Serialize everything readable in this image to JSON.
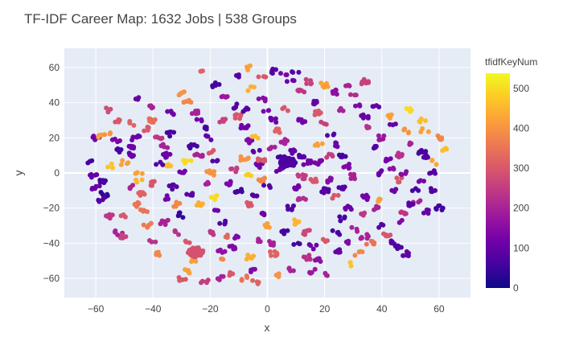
{
  "chart_data": {
    "type": "scatter",
    "title": "TF-IDF Career Map: 1632 Jobs | 538 Groups",
    "xlabel": "x",
    "ylabel": "y",
    "xlim": [
      -71,
      71
    ],
    "ylim": [
      -71,
      71
    ],
    "xticks": [
      -60,
      -40,
      -20,
      0,
      20,
      40,
      60
    ],
    "yticks": [
      -60,
      -40,
      -20,
      0,
      20,
      40,
      60
    ],
    "grid": true,
    "colorbar": {
      "title": "tfidfKeyNum",
      "range": [
        0,
        538
      ],
      "ticks": [
        0,
        100,
        200,
        300,
        400,
        500
      ],
      "colorscale": [
        "#0d0887",
        "#46039f",
        "#7201a8",
        "#9c179e",
        "#bd3786",
        "#d8576b",
        "#ed7953",
        "#fb9f3a",
        "#fdca26",
        "#f0f921"
      ]
    },
    "points": [
      [
        -60,
        20,
        120
      ],
      [
        -58,
        21,
        420
      ],
      [
        -56,
        22,
        400
      ],
      [
        -53,
        18,
        130
      ],
      [
        -52,
        13,
        60
      ],
      [
        -55,
        4,
        470
      ],
      [
        -58,
        -5,
        60
      ],
      [
        -60,
        -8,
        110
      ],
      [
        -58,
        -15,
        80
      ],
      [
        -55,
        -25,
        240
      ],
      [
        -52,
        -34,
        200
      ],
      [
        -50,
        -36,
        260
      ],
      [
        -55,
        36,
        280
      ],
      [
        -52,
        30,
        300
      ],
      [
        -48,
        15,
        110
      ],
      [
        -48,
        10,
        100
      ],
      [
        -45,
        0,
        420
      ],
      [
        -45,
        -4,
        450
      ],
      [
        -44,
        -12,
        320
      ],
      [
        -43,
        -22,
        350
      ],
      [
        -42,
        -30,
        360
      ],
      [
        -40,
        -38,
        230
      ],
      [
        -38,
        -46,
        380
      ],
      [
        -40,
        30,
        340
      ],
      [
        -42,
        25,
        300
      ],
      [
        -38,
        20,
        240
      ],
      [
        -36,
        15,
        200
      ],
      [
        -35,
        10,
        110
      ],
      [
        -34,
        4,
        460
      ],
      [
        -33,
        -8,
        80
      ],
      [
        -36,
        -14,
        120
      ],
      [
        -32,
        -18,
        380
      ],
      [
        -30,
        -24,
        40
      ],
      [
        -31,
        -34,
        230
      ],
      [
        -28,
        -40,
        300
      ],
      [
        -26,
        -50,
        420
      ],
      [
        -30,
        45,
        400
      ],
      [
        -28,
        40,
        380
      ],
      [
        -25,
        35,
        200
      ],
      [
        -24,
        30,
        120
      ],
      [
        -22,
        25,
        60
      ],
      [
        -21,
        20,
        100
      ],
      [
        -20,
        12,
        300
      ],
      [
        -18,
        8,
        80
      ],
      [
        -20,
        0,
        400
      ],
      [
        -22,
        -6,
        200
      ],
      [
        -19,
        -14,
        500
      ],
      [
        -18,
        -22,
        110
      ],
      [
        -16,
        -28,
        80
      ],
      [
        -14,
        -36,
        330
      ],
      [
        -12,
        -42,
        140
      ],
      [
        -15,
        -50,
        380
      ],
      [
        -12,
        -58,
        300
      ],
      [
        -22,
        58,
        320
      ],
      [
        -18,
        50,
        60
      ],
      [
        -15,
        44,
        180
      ],
      [
        -12,
        38,
        80
      ],
      [
        -10,
        32,
        300
      ],
      [
        -8,
        26,
        120
      ],
      [
        -6,
        18,
        140
      ],
      [
        -4,
        12,
        90
      ],
      [
        -3,
        4,
        120
      ],
      [
        -2,
        -4,
        380
      ],
      [
        -4,
        -12,
        80
      ],
      [
        -6,
        -18,
        300
      ],
      [
        -2,
        -24,
        110
      ],
      [
        0,
        -30,
        420
      ],
      [
        -3,
        -38,
        200
      ],
      [
        2,
        -46,
        320
      ],
      [
        -5,
        -55,
        140
      ],
      [
        -10,
        55,
        80
      ],
      [
        -6,
        48,
        440
      ],
      [
        -2,
        42,
        150
      ],
      [
        0,
        36,
        130
      ],
      [
        2,
        30,
        110
      ],
      [
        4,
        24,
        320
      ],
      [
        6,
        18,
        200
      ],
      [
        5,
        10,
        60
      ],
      [
        9,
        12,
        100
      ],
      [
        12,
        10,
        80
      ],
      [
        14,
        6,
        120
      ],
      [
        12,
        -2,
        250
      ],
      [
        10,
        -8,
        120
      ],
      [
        12,
        -14,
        220
      ],
      [
        8,
        -20,
        80
      ],
      [
        10,
        -28,
        450
      ],
      [
        14,
        -34,
        270
      ],
      [
        10,
        -40,
        60
      ],
      [
        14,
        -48,
        230
      ],
      [
        20,
        -58,
        200
      ],
      [
        16,
        -56,
        180
      ],
      [
        2,
        58,
        80
      ],
      [
        6,
        56,
        130
      ],
      [
        8,
        52,
        110
      ],
      [
        12,
        46,
        240
      ],
      [
        16,
        40,
        100
      ],
      [
        18,
        34,
        300
      ],
      [
        20,
        28,
        260
      ],
      [
        22,
        22,
        80
      ],
      [
        24,
        16,
        110
      ],
      [
        26,
        10,
        60
      ],
      [
        28,
        4,
        140
      ],
      [
        30,
        -2,
        200
      ],
      [
        26,
        -8,
        80
      ],
      [
        24,
        -14,
        300
      ],
      [
        28,
        -20,
        110
      ],
      [
        26,
        -26,
        60
      ],
      [
        30,
        -32,
        200
      ],
      [
        28,
        -40,
        140
      ],
      [
        32,
        -46,
        380
      ],
      [
        30,
        -52,
        470
      ],
      [
        36,
        -40,
        350
      ],
      [
        34,
        -36,
        200
      ],
      [
        40,
        -30,
        80
      ],
      [
        44,
        -40,
        80
      ],
      [
        46,
        -42,
        70
      ],
      [
        48,
        -46,
        100
      ],
      [
        42,
        -36,
        300
      ],
      [
        30,
        44,
        220
      ],
      [
        32,
        38,
        140
      ],
      [
        34,
        32,
        110
      ],
      [
        36,
        26,
        230
      ],
      [
        40,
        20,
        180
      ],
      [
        38,
        14,
        80
      ],
      [
        42,
        8,
        120
      ],
      [
        44,
        2,
        160
      ],
      [
        46,
        -4,
        300
      ],
      [
        44,
        -10,
        110
      ],
      [
        40,
        -16,
        420
      ],
      [
        48,
        -22,
        240
      ],
      [
        46,
        -28,
        140
      ],
      [
        44,
        28,
        100
      ],
      [
        48,
        24,
        400
      ],
      [
        50,
        16,
        200
      ],
      [
        54,
        30,
        460
      ],
      [
        55,
        24,
        420
      ],
      [
        56,
        10,
        80
      ],
      [
        58,
        6,
        430
      ],
      [
        60,
        20,
        380
      ],
      [
        62,
        14,
        460
      ],
      [
        54,
        -4,
        130
      ],
      [
        52,
        -16,
        200
      ],
      [
        58,
        -10,
        80
      ],
      [
        60,
        -20,
        60
      ],
      [
        56,
        -22,
        100
      ],
      [
        50,
        -18,
        90
      ],
      [
        -8,
        8,
        400
      ],
      [
        -12,
        2,
        250
      ],
      [
        -14,
        -6,
        130
      ],
      [
        -10,
        -10,
        60
      ],
      [
        -6,
        -2,
        480
      ],
      [
        -2,
        8,
        300
      ],
      [
        2,
        14,
        200
      ],
      [
        4,
        2,
        100
      ],
      [
        0,
        -8,
        80
      ],
      [
        -4,
        20,
        460
      ],
      [
        18,
        6,
        130
      ],
      [
        16,
        -4,
        300
      ],
      [
        20,
        -10,
        80
      ],
      [
        22,
        -4,
        150
      ],
      [
        18,
        16,
        420
      ],
      [
        22,
        10,
        250
      ],
      [
        -26,
        15,
        60
      ],
      [
        -28,
        6,
        500
      ],
      [
        -30,
        0,
        120
      ],
      [
        -27,
        -12,
        90
      ],
      [
        -24,
        -18,
        440
      ],
      [
        -24,
        10,
        200
      ],
      [
        -34,
        22,
        60
      ],
      [
        -38,
        5,
        80
      ],
      [
        -40,
        -6,
        300
      ],
      [
        -36,
        -28,
        200
      ],
      [
        -46,
        20,
        110
      ],
      [
        -50,
        6,
        420
      ],
      [
        -30,
        -60,
        300
      ],
      [
        -28,
        -56,
        420
      ],
      [
        -22,
        -62,
        250
      ],
      [
        -16,
        -60,
        200
      ],
      [
        -8,
        -60,
        350
      ],
      [
        -4,
        -62,
        320
      ],
      [
        4,
        -58,
        400
      ],
      [
        8,
        -55,
        200
      ],
      [
        18,
        -50,
        160
      ],
      [
        24,
        -44,
        100
      ],
      [
        -6,
        60,
        420
      ],
      [
        -2,
        56,
        300
      ],
      [
        10,
        58,
        80
      ],
      [
        14,
        52,
        260
      ],
      [
        20,
        50,
        420
      ],
      [
        24,
        46,
        160
      ],
      [
        28,
        50,
        200
      ],
      [
        34,
        52,
        260
      ],
      [
        -46,
        42,
        100
      ],
      [
        -40,
        38,
        200
      ],
      [
        -34,
        34,
        120
      ],
      [
        -48,
        28,
        320
      ],
      [
        -16,
        30,
        260
      ],
      [
        -8,
        36,
        80
      ],
      [
        6,
        36,
        300
      ],
      [
        12,
        30,
        120
      ],
      [
        26,
        36,
        200
      ],
      [
        38,
        38,
        100
      ],
      [
        42,
        32,
        420
      ],
      [
        50,
        36,
        500
      ],
      [
        6,
        -34,
        60
      ],
      [
        2,
        -40,
        200
      ],
      [
        -10,
        -36,
        140
      ],
      [
        -20,
        -34,
        240
      ],
      [
        -16,
        -44,
        160
      ],
      [
        -6,
        -48,
        440
      ],
      [
        16,
        -42,
        110
      ],
      [
        20,
        -38,
        300
      ],
      [
        24,
        -34,
        60
      ],
      [
        34,
        -24,
        240
      ],
      [
        38,
        -20,
        200
      ],
      [
        34,
        -14,
        120
      ],
      [
        -62,
        6,
        60
      ],
      [
        -61,
        -2,
        100
      ],
      [
        -57,
        -12,
        40
      ],
      [
        -50,
        -24,
        300
      ],
      [
        -46,
        -18,
        350
      ],
      [
        -48,
        -8,
        200
      ],
      [
        58,
        0,
        80
      ],
      [
        54,
        12,
        60
      ],
      [
        46,
        10,
        230
      ],
      [
        48,
        0,
        150
      ],
      [
        52,
        -10,
        60
      ],
      [
        40,
        0,
        110
      ]
    ],
    "blobs": [
      {
        "x": 7,
        "y": 6,
        "v": 70
      },
      {
        "x": -25,
        "y": -45,
        "v": 290
      }
    ]
  }
}
